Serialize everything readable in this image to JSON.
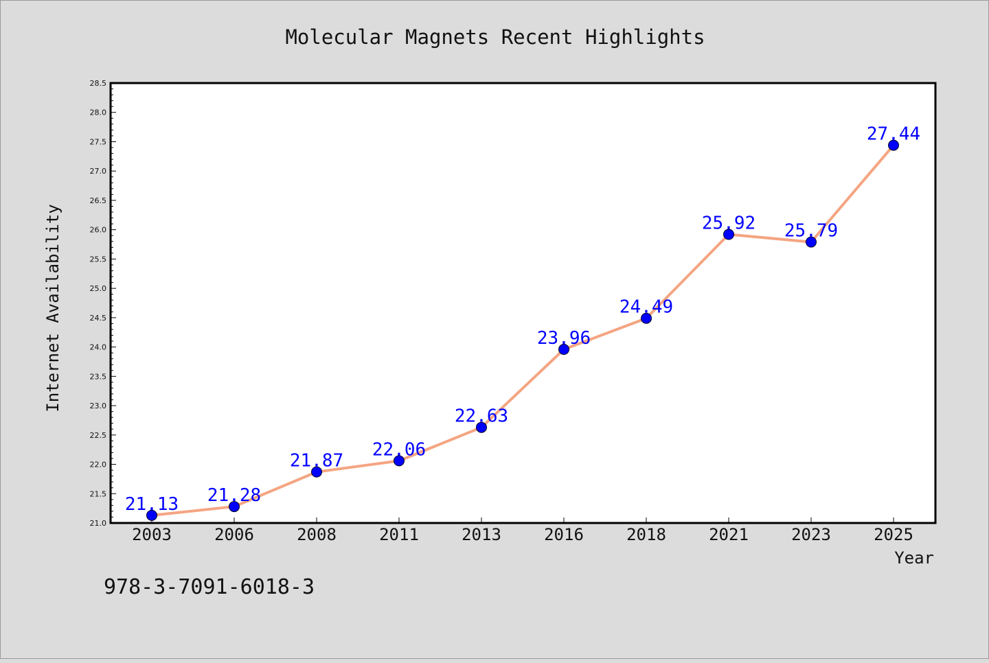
{
  "chart_data": {
    "type": "line",
    "title": "Molecular Magnets Recent Highlights",
    "xlabel": "Year",
    "ylabel": "Internet Availability",
    "categories": [
      "2003",
      "2006",
      "2008",
      "2011",
      "2013",
      "2016",
      "2018",
      "2021",
      "2023",
      "2025"
    ],
    "series": [
      {
        "values": [
          21.13,
          21.28,
          21.87,
          22.06,
          22.63,
          23.96,
          24.49,
          25.92,
          25.79,
          27.44
        ]
      }
    ],
    "data_labels": [
      "21.13",
      "21.28",
      "21.87",
      "22.06",
      "22.63",
      "23.96",
      "24.49",
      "25.92",
      "25.79",
      "27.44"
    ],
    "ylim": [
      21.0,
      28.5
    ],
    "yticks": [
      "21.0",
      "21.5",
      "22.0",
      "22.5",
      "23.0",
      "23.5",
      "24.0",
      "24.5",
      "25.0",
      "25.5",
      "26.0",
      "26.5",
      "27.0",
      "27.5",
      "28.0",
      "28.5"
    ],
    "grid": false,
    "legend": "none",
    "line_color": "#f4a582",
    "marker_color": "#0000ff",
    "label_color": "#0000ff"
  },
  "footer": {
    "isbn": "978-3-7091-6018-3"
  }
}
